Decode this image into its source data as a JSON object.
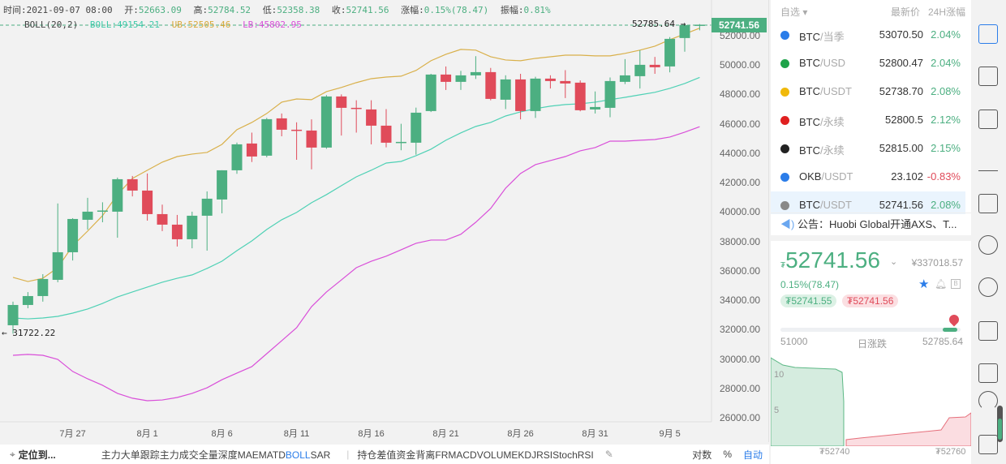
{
  "header": {
    "time_label": "时间:",
    "time": "2021-09-07 08:00",
    "open_label": "开:",
    "open": "52663.09",
    "high_label": "高:",
    "high": "52784.52",
    "low_label": "低:",
    "low": "52358.38",
    "close_label": "收:",
    "close": "52741.56",
    "change_label": "涨幅:",
    "change": "0.15%(78.47)",
    "amp_label": "振幅:",
    "amp": "0.81%"
  },
  "boll": {
    "name": "BOLL(20,2)",
    "mb": "BOLL:49154.21",
    "ub": "UB:52505.46",
    "lb": "LB:45802.95",
    "colors": {
      "mb": "#4fd1b5",
      "ub": "#d9b04a",
      "lb": "#d94fd9"
    }
  },
  "chart_data": {
    "type": "candlestick",
    "ylim": [
      26000,
      53000
    ],
    "yticks": [
      "26000.00",
      "28000.00",
      "30000.00",
      "32000.00",
      "34000.00",
      "36000.00",
      "38000.00",
      "40000.00",
      "42000.00",
      "44000.00",
      "46000.00",
      "48000.00",
      "50000.00",
      "52000.00"
    ],
    "xticks": [
      {
        "label": "7月 27",
        "index": 4
      },
      {
        "label": "8月 1",
        "index": 9
      },
      {
        "label": "8月 6",
        "index": 14
      },
      {
        "label": "8月 11",
        "index": 19
      },
      {
        "label": "8月 16",
        "index": 24
      },
      {
        "label": "8月 21",
        "index": 29
      },
      {
        "label": "8月 26",
        "index": 34
      },
      {
        "label": "8月 31",
        "index": 39
      },
      {
        "label": "9月 5",
        "index": 44
      }
    ],
    "current_price": "52741.56",
    "max_marker": "52785.64",
    "min_marker": "31722.22",
    "ohlc": [
      [
        32293,
        33900,
        31722,
        33673
      ],
      [
        33673,
        34550,
        33450,
        34280
      ],
      [
        34280,
        35770,
        33900,
        35439
      ],
      [
        35384,
        40580,
        35220,
        37261
      ],
      [
        37261,
        39580,
        36700,
        39524
      ],
      [
        39469,
        40960,
        38800,
        40021
      ],
      [
        40076,
        40660,
        39300,
        40100
      ],
      [
        40021,
        42340,
        38250,
        42229
      ],
      [
        42229,
        42450,
        41060,
        41456
      ],
      [
        41456,
        42620,
        39410,
        39855
      ],
      [
        39855,
        40500,
        38700,
        39138
      ],
      [
        39138,
        39800,
        37650,
        38144
      ],
      [
        38144,
        40020,
        37530,
        39745
      ],
      [
        39745,
        41400,
        37370,
        40904
      ],
      [
        40849,
        42840,
        39910,
        42836
      ],
      [
        42836,
        44720,
        42600,
        44602
      ],
      [
        44658,
        45400,
        43400,
        43774
      ],
      [
        43830,
        46400,
        43720,
        46314
      ],
      [
        46369,
        46700,
        45150,
        45596
      ],
      [
        45596,
        46100,
        43550,
        45541
      ],
      [
        45541,
        46300,
        42900,
        44382
      ],
      [
        44382,
        47950,
        44300,
        47859
      ],
      [
        47859,
        48000,
        45200,
        47086
      ],
      [
        47086,
        47600,
        45400,
        47040
      ],
      [
        46976,
        47600,
        44600,
        45872
      ],
      [
        45872,
        47000,
        44400,
        44713
      ],
      [
        44713,
        46000,
        44200,
        44768
      ],
      [
        44713,
        47100,
        43900,
        46755
      ],
      [
        46866,
        49400,
        46800,
        49350
      ],
      [
        49350,
        49900,
        48300,
        48853
      ],
      [
        48853,
        49600,
        48300,
        49294
      ],
      [
        49294,
        50600,
        49050,
        49515
      ],
      [
        49515,
        49800,
        47600,
        47694
      ],
      [
        47638,
        49300,
        47000,
        49018
      ],
      [
        49018,
        49400,
        46300,
        46866
      ],
      [
        46866,
        49200,
        46400,
        49074
      ],
      [
        49074,
        49300,
        48400,
        48908
      ],
      [
        48908,
        49650,
        47750,
        48742
      ],
      [
        48798,
        48950,
        46850,
        46921
      ],
      [
        46976,
        48200,
        46700,
        47142
      ],
      [
        47086,
        49150,
        46450,
        48908
      ],
      [
        48853,
        50400,
        48700,
        49294
      ],
      [
        49239,
        51000,
        48400,
        50012
      ],
      [
        50012,
        50550,
        49400,
        49846
      ],
      [
        49902,
        51900,
        49500,
        51778
      ],
      [
        51834,
        52785.64,
        50900,
        52717
      ],
      [
        52663.09,
        52784.52,
        52358.38,
        52741.56
      ]
    ],
    "ub": [
      35550,
      35270,
      35490,
      36210,
      37700,
      38700,
      39750,
      41180,
      42280,
      42840,
      43390,
      43770,
      43940,
      44050,
      44600,
      45600,
      46090,
      46700,
      47470,
      47690,
      47640,
      48190,
      48470,
      48800,
      49070,
      49180,
      49240,
      49630,
      50290,
      50730,
      51060,
      51010,
      50560,
      50340,
      50290,
      50450,
      50560,
      50670,
      50670,
      50620,
      50620,
      50790,
      51010,
      51280,
      51720,
      52110,
      52505.46
    ],
    "mb": [
      32790,
      32730,
      32790,
      32900,
      33120,
      33400,
      33780,
      34220,
      34560,
      34890,
      35220,
      35490,
      35720,
      36160,
      36650,
      37370,
      38030,
      38810,
      39470,
      39970,
      40630,
      41180,
      41790,
      42390,
      42840,
      43330,
      43440,
      43830,
      44270,
      44880,
      45380,
      45820,
      46090,
      46530,
      46810,
      47030,
      47200,
      47310,
      47360,
      47470,
      47640,
      47800,
      47970,
      48140,
      48410,
      48740,
      49154.21
    ],
    "lb": [
      30250,
      30310,
      30250,
      29970,
      29150,
      28650,
      28210,
      27660,
      27330,
      27160,
      27210,
      27380,
      27660,
      28040,
      28590,
      29040,
      29480,
      30360,
      31240,
      32130,
      33560,
      34560,
      35380,
      36210,
      36650,
      36990,
      37430,
      37870,
      38090,
      38090,
      38480,
      39300,
      40240,
      41620,
      42620,
      43220,
      43500,
      43770,
      44160,
      44380,
      44820,
      44820,
      44880,
      44930,
      45100,
      45430,
      45802.95
    ],
    "up_color": "#4caf81",
    "down_color": "#e04b5a"
  },
  "bottom": {
    "locate": "定位到...",
    "indicators_main_pre": "主力大单跟踪主力成交全量深度MAEMATD",
    "indicators_main_active": "BOLL",
    "indicators_main_post": "SAR",
    "indicators_sub": "持仓差值资金背离FRMACDVOLUMEKDJRSIStochRSI",
    "log": "对数",
    "percent": "%",
    "auto": "自动"
  },
  "watchlist": {
    "title": "自选",
    "col_price": "最新价",
    "col_change": "24H涨幅",
    "items": [
      {
        "base": "BTC",
        "quote": "/当季",
        "price": "53070.50",
        "change": "2.04%",
        "icon_color": "#2b7de9"
      },
      {
        "base": "BTC",
        "quote": "/USD",
        "price": "52800.47",
        "change": "2.04%",
        "icon_color": "#1fa34a"
      },
      {
        "base": "BTC",
        "quote": "/USDT",
        "price": "52738.70",
        "change": "2.08%",
        "icon_color": "#f0b90b"
      },
      {
        "base": "BTC",
        "quote": "/永续",
        "price": "52800.5",
        "change": "2.12%",
        "icon_color": "#e02020"
      },
      {
        "base": "BTC",
        "quote": "/永续",
        "price": "52815.00",
        "change": "2.15%",
        "icon_color": "#222222"
      },
      {
        "base": "OKB",
        "quote": "/USDT",
        "price": "23.102",
        "change": "-0.83%",
        "icon_color": "#2b7de9"
      },
      {
        "base": "BTC",
        "quote": "/USDT",
        "price": "52741.56",
        "change": "2.08%",
        "icon_color": "#888888"
      }
    ]
  },
  "announcement": "公告：Huobi Global开通AXS、T...",
  "ticker": {
    "currency": "₮",
    "price": "52741.56",
    "cny": "¥337018.57",
    "change": "0.15%(78.47)",
    "bid": "₮52741.55",
    "ask": "₮52741.56",
    "range_low": "51000",
    "range_label": "日涨跌",
    "range_high": "52785.64",
    "range_position": 0.98,
    "depth_y": [
      "10",
      "5"
    ],
    "depth_x": [
      "₮52740",
      "₮52760"
    ]
  }
}
